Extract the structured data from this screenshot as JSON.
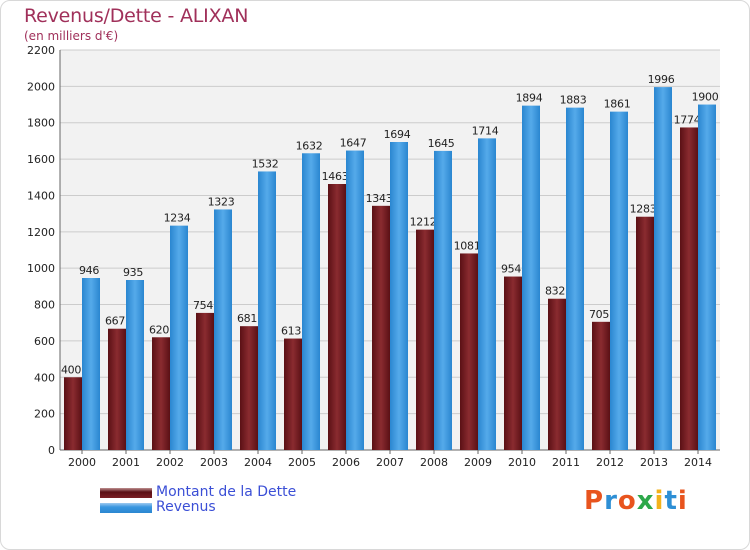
{
  "title": "Revenus/Dette - ALIXAN",
  "subtitle": "(en milliers d'€)",
  "logo": {
    "text": "Proxiti",
    "colors": [
      "#e8541e",
      "#2d8fd5",
      "#e8541e",
      "#2da84a",
      "#f3b21b",
      "#2d8fd5",
      "#e8541e"
    ]
  },
  "colors": {
    "dette": "#7a1f24",
    "revenus": "#3a97e0",
    "grid": "#cccccc",
    "plot_bg": "#f2f2f2"
  },
  "chart_data": {
    "type": "bar",
    "categories": [
      "2000",
      "2001",
      "2002",
      "2003",
      "2004",
      "2005",
      "2006",
      "2007",
      "2008",
      "2009",
      "2010",
      "2011",
      "2012",
      "2013",
      "2014"
    ],
    "series": [
      {
        "name": "Montant de la Dette",
        "values": [
          400,
          667,
          620,
          754,
          681,
          613,
          1463,
          1343,
          1212,
          1081,
          954,
          832,
          705,
          1283,
          1774
        ],
        "labels": [
          "400",
          "667",
          "620",
          "754",
          "681",
          "613",
          "1463",
          "1343",
          "1212",
          "1081",
          "954",
          "832",
          "705",
          "1283",
          "1774"
        ]
      },
      {
        "name": "Revenus",
        "values": [
          946,
          935,
          1234,
          1323,
          1532,
          1632,
          1647,
          1694,
          1645,
          1714,
          1894,
          1883,
          1861,
          1996,
          1900
        ],
        "labels": [
          "946",
          "935",
          "1234",
          "1323",
          "1532",
          "1632",
          "1647",
          "1694",
          "1645",
          "1714",
          "1894",
          "1883",
          "1861",
          "1996",
          "1900"
        ]
      }
    ],
    "title": "Revenus/Dette - ALIXAN",
    "ylabel": "(en milliers d'€)",
    "ylim": [
      0,
      2200
    ],
    "yticks": [
      0,
      200,
      400,
      600,
      800,
      1000,
      1200,
      1400,
      1600,
      1800,
      2000,
      2200
    ],
    "grid": true,
    "legend_position": "bottom-left"
  }
}
